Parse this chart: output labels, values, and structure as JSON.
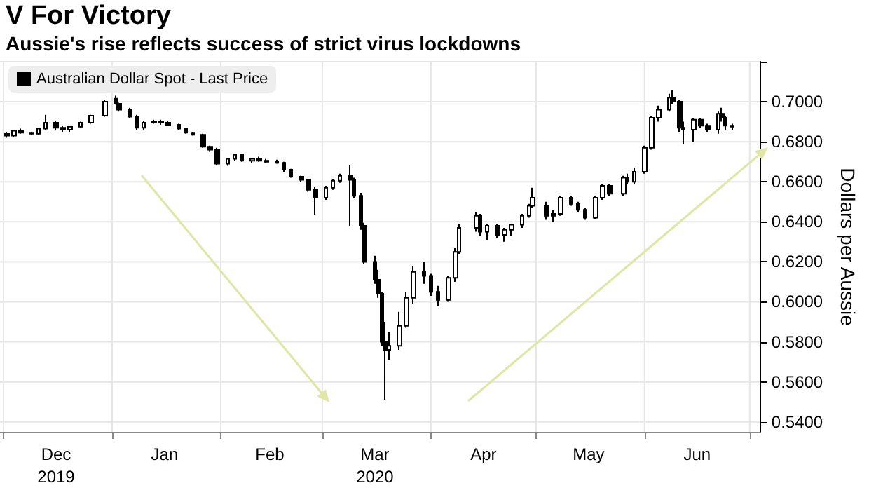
{
  "chart_data": {
    "type": "candlestick",
    "title": "V For Victory",
    "subtitle": "Aussie's rise reflects success of strict virus lockdowns",
    "ylabel": "Dollars per Aussie",
    "legend": "top left",
    "grid": true,
    "xlim": [
      "2019-11-30",
      "2020-07-04"
    ],
    "xticks": [
      {
        "value": "2019-12-01",
        "label": null
      },
      {
        "value": "2019-12-16",
        "label": "Dec\n2019"
      },
      {
        "value": "2020-01-01",
        "label": null
      },
      {
        "value": "2020-01-16",
        "label": "Jan"
      },
      {
        "value": "2020-02-01",
        "label": null
      },
      {
        "value": "2020-02-15",
        "label": "Feb"
      },
      {
        "value": "2020-03-01",
        "label": null
      },
      {
        "value": "2020-03-16",
        "label": "Mar\n2020"
      },
      {
        "value": "2020-04-01",
        "label": null
      },
      {
        "value": "2020-04-16",
        "label": "Apr"
      },
      {
        "value": "2020-05-01",
        "label": null
      },
      {
        "value": "2020-05-16",
        "label": "May"
      },
      {
        "value": "2020-06-01",
        "label": null
      },
      {
        "value": "2020-06-16",
        "label": "Jun"
      },
      {
        "value": "2020-07-01",
        "label": null
      }
    ],
    "ylim": [
      0.535,
      0.72
    ],
    "yticks": [
      {
        "value": 0.54,
        "label": "0.5400"
      },
      {
        "value": 0.56,
        "label": "0.5600"
      },
      {
        "value": 0.58,
        "label": "0.5800"
      },
      {
        "value": 0.6,
        "label": "0.6000"
      },
      {
        "value": 0.62,
        "label": "0.6200"
      },
      {
        "value": 0.64,
        "label": "0.6400"
      },
      {
        "value": 0.66,
        "label": "0.6600"
      },
      {
        "value": 0.68,
        "label": "0.6800"
      },
      {
        "value": 0.7,
        "label": "0.7000"
      },
      {
        "value": 0.72,
        "label": null
      }
    ],
    "series": [
      {
        "name": "Australian Dollar Spot - Last Price",
        "color": "#000000",
        "x": [
          "2019-12-02",
          "2019-12-04",
          "2019-12-06",
          "2019-12-09",
          "2019-12-11",
          "2019-12-13",
          "2019-12-16",
          "2019-12-18",
          "2019-12-20",
          "2019-12-23",
          "2019-12-26",
          "2019-12-30",
          "2020-01-02",
          "2020-01-03",
          "2020-01-06",
          "2020-01-08",
          "2020-01-10",
          "2020-01-13",
          "2020-01-15",
          "2020-01-17",
          "2020-01-20",
          "2020-01-22",
          "2020-01-24",
          "2020-01-27",
          "2020-01-29",
          "2020-01-31",
          "2020-02-03",
          "2020-02-05",
          "2020-02-07",
          "2020-02-10",
          "2020-02-12",
          "2020-02-14",
          "2020-02-17",
          "2020-02-19",
          "2020-02-21",
          "2020-02-24",
          "2020-02-26",
          "2020-02-28",
          "2020-03-02",
          "2020-03-04",
          "2020-03-06",
          "2020-03-09",
          "2020-03-10",
          "2020-03-12",
          "2020-03-13",
          "2020-03-16",
          "2020-03-17",
          "2020-03-18",
          "2020-03-19",
          "2020-03-20",
          "2020-03-23",
          "2020-03-25",
          "2020-03-27",
          "2020-03-30",
          "2020-04-01",
          "2020-04-03",
          "2020-04-06",
          "2020-04-08",
          "2020-04-09",
          "2020-04-14",
          "2020-04-15",
          "2020-04-17",
          "2020-04-20",
          "2020-04-22",
          "2020-04-24",
          "2020-04-27",
          "2020-04-29",
          "2020-04-30",
          "2020-05-04",
          "2020-05-06",
          "2020-05-08",
          "2020-05-11",
          "2020-05-13",
          "2020-05-15",
          "2020-05-18",
          "2020-05-20",
          "2020-05-22",
          "2020-05-26",
          "2020-05-27",
          "2020-05-29",
          "2020-06-01",
          "2020-06-03",
          "2020-06-05",
          "2020-06-08",
          "2020-06-09",
          "2020-06-11",
          "2020-06-12",
          "2020-06-15",
          "2020-06-17",
          "2020-06-19",
          "2020-06-22",
          "2020-06-23",
          "2020-06-24",
          "2020-06-26"
        ],
        "ohlc": [
          [
            0.684,
            0.685,
            0.682,
            0.683
          ],
          [
            0.683,
            0.686,
            0.6825,
            0.6855
          ],
          [
            0.6855,
            0.6865,
            0.684,
            0.6845
          ],
          [
            0.6845,
            0.685,
            0.6835,
            0.684
          ],
          [
            0.684,
            0.687,
            0.6835,
            0.6865
          ],
          [
            0.6865,
            0.6935,
            0.686,
            0.6895
          ],
          [
            0.6895,
            0.6905,
            0.686,
            0.687
          ],
          [
            0.687,
            0.688,
            0.685,
            0.686
          ],
          [
            0.686,
            0.688,
            0.685,
            0.6875
          ],
          [
            0.6875,
            0.69,
            0.687,
            0.6895
          ],
          [
            0.6895,
            0.6935,
            0.689,
            0.693
          ],
          [
            0.693,
            0.701,
            0.6925,
            0.7
          ],
          [
            0.7015,
            0.703,
            0.6985,
            0.699
          ],
          [
            0.699,
            0.6995,
            0.695,
            0.696
          ],
          [
            0.696,
            0.697,
            0.692,
            0.6925
          ],
          [
            0.6925,
            0.6935,
            0.686,
            0.687
          ],
          [
            0.687,
            0.6905,
            0.686,
            0.6895
          ],
          [
            0.6895,
            0.691,
            0.689,
            0.69
          ],
          [
            0.69,
            0.691,
            0.6885,
            0.6895
          ],
          [
            0.6895,
            0.6905,
            0.688,
            0.6885
          ],
          [
            0.6885,
            0.689,
            0.686,
            0.6865
          ],
          [
            0.6865,
            0.687,
            0.684,
            0.6845
          ],
          [
            0.6845,
            0.685,
            0.683,
            0.6835
          ],
          [
            0.6835,
            0.684,
            0.677,
            0.6775
          ],
          [
            0.6775,
            0.678,
            0.675,
            0.676
          ],
          [
            0.676,
            0.677,
            0.6685,
            0.669
          ],
          [
            0.669,
            0.672,
            0.668,
            0.6715
          ],
          [
            0.6715,
            0.674,
            0.6705,
            0.6735
          ],
          [
            0.6735,
            0.674,
            0.67,
            0.6705
          ],
          [
            0.6705,
            0.672,
            0.6695,
            0.6715
          ],
          [
            0.6715,
            0.6725,
            0.67,
            0.6705
          ],
          [
            0.6705,
            0.6715,
            0.6695,
            0.67
          ],
          [
            0.67,
            0.671,
            0.669,
            0.6695
          ],
          [
            0.6695,
            0.67,
            0.665,
            0.666
          ],
          [
            0.666,
            0.6665,
            0.662,
            0.6625
          ],
          [
            0.6625,
            0.663,
            0.66,
            0.661
          ],
          [
            0.661,
            0.6615,
            0.655,
            0.656
          ],
          [
            0.656,
            0.6575,
            0.6435,
            0.652
          ],
          [
            0.652,
            0.658,
            0.651,
            0.657
          ],
          [
            0.657,
            0.6615,
            0.656,
            0.6605
          ],
          [
            0.6605,
            0.664,
            0.6595,
            0.663
          ],
          [
            0.663,
            0.6685,
            0.638,
            0.661
          ],
          [
            0.661,
            0.662,
            0.652,
            0.653
          ],
          [
            0.653,
            0.6545,
            0.636,
            0.638
          ],
          [
            0.638,
            0.6395,
            0.619,
            0.62
          ],
          [
            0.62,
            0.623,
            0.609,
            0.611
          ],
          [
            0.611,
            0.616,
            0.602,
            0.604
          ],
          [
            0.604,
            0.605,
            0.578,
            0.58
          ],
          [
            0.58,
            0.59,
            0.551,
            0.576
          ],
          [
            0.576,
            0.585,
            0.571,
            0.578
          ],
          [
            0.578,
            0.595,
            0.576,
            0.588
          ],
          [
            0.588,
            0.605,
            0.587,
            0.602
          ],
          [
            0.602,
            0.618,
            0.599,
            0.615
          ],
          [
            0.615,
            0.62,
            0.609,
            0.613
          ],
          [
            0.613,
            0.614,
            0.603,
            0.605
          ],
          [
            0.605,
            0.608,
            0.598,
            0.601
          ],
          [
            0.601,
            0.613,
            0.6,
            0.612
          ],
          [
            0.612,
            0.627,
            0.61,
            0.625
          ],
          [
            0.625,
            0.639,
            0.624,
            0.637
          ],
          [
            0.637,
            0.645,
            0.635,
            0.643
          ],
          [
            0.643,
            0.644,
            0.633,
            0.635
          ],
          [
            0.635,
            0.639,
            0.631,
            0.638
          ],
          [
            0.638,
            0.639,
            0.632,
            0.6335
          ],
          [
            0.6335,
            0.637,
            0.63,
            0.636
          ],
          [
            0.636,
            0.639,
            0.633,
            0.6385
          ],
          [
            0.6385,
            0.644,
            0.637,
            0.643
          ],
          [
            0.643,
            0.649,
            0.642,
            0.648
          ],
          [
            0.648,
            0.657,
            0.647,
            0.652
          ],
          [
            0.648,
            0.65,
            0.641,
            0.643
          ],
          [
            0.643,
            0.646,
            0.64,
            0.644
          ],
          [
            0.644,
            0.653,
            0.643,
            0.652
          ],
          [
            0.652,
            0.653,
            0.648,
            0.649
          ],
          [
            0.649,
            0.65,
            0.645,
            0.646
          ],
          [
            0.646,
            0.647,
            0.641,
            0.642
          ],
          [
            0.642,
            0.653,
            0.6415,
            0.652
          ],
          [
            0.652,
            0.659,
            0.651,
            0.658
          ],
          [
            0.658,
            0.659,
            0.653,
            0.654
          ],
          [
            0.654,
            0.663,
            0.653,
            0.662
          ],
          [
            0.662,
            0.664,
            0.659,
            0.66
          ],
          [
            0.66,
            0.667,
            0.659,
            0.665
          ],
          [
            0.665,
            0.678,
            0.664,
            0.677
          ],
          [
            0.677,
            0.693,
            0.676,
            0.692
          ],
          [
            0.692,
            0.698,
            0.69,
            0.696
          ],
          [
            0.696,
            0.704,
            0.695,
            0.702
          ],
          [
            0.702,
            0.706,
            0.699,
            0.7
          ],
          [
            0.7,
            0.701,
            0.685,
            0.687
          ],
          [
            0.687,
            0.69,
            0.679,
            0.686
          ],
          [
            0.686,
            0.692,
            0.68,
            0.691
          ],
          [
            0.691,
            0.692,
            0.687,
            0.688
          ],
          [
            0.688,
            0.689,
            0.685,
            0.686
          ],
          [
            0.686,
            0.695,
            0.684,
            0.694
          ],
          [
            0.694,
            0.697,
            0.69,
            0.692
          ],
          [
            0.692,
            0.693,
            0.686,
            0.688
          ],
          [
            0.688,
            0.689,
            0.686,
            0.6875
          ]
        ]
      }
    ]
  }
}
